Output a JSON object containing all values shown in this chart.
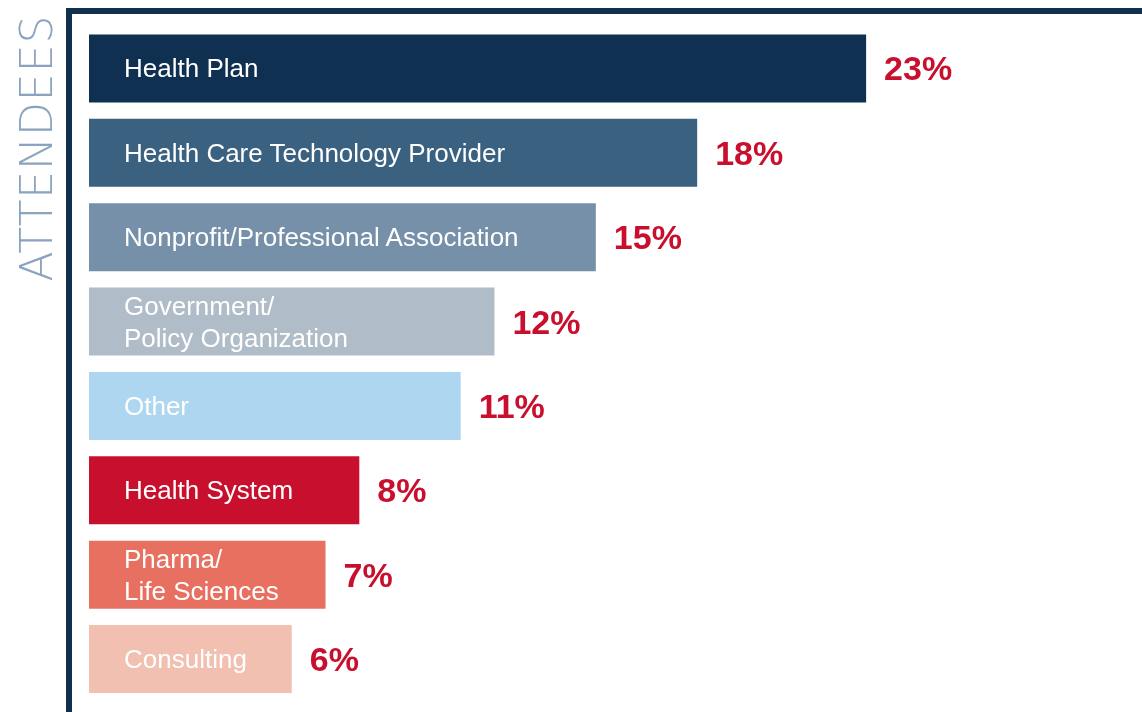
{
  "chart_data": {
    "type": "bar",
    "orientation": "horizontal",
    "ylabel": "ATTENDEES",
    "categories": [
      "Health Plan",
      "Health Care Technology Provider",
      "Nonprofit/Professional Association",
      "Government/ Policy Organization",
      "Other",
      "Health System",
      "Pharma/ Life Sciences",
      "Consulting"
    ],
    "values": [
      23,
      18,
      15,
      12,
      11,
      8,
      7,
      6
    ],
    "colors": [
      "#0f3050",
      "#3a6180",
      "#7590a8",
      "#b0bcc8",
      "#aed6f1",
      "#c8102e",
      "#e87060",
      "#f2c0b0"
    ],
    "value_labels": [
      "23%",
      "18%",
      "15%",
      "12%",
      "11%",
      "8%",
      "7%",
      "6%"
    ]
  }
}
